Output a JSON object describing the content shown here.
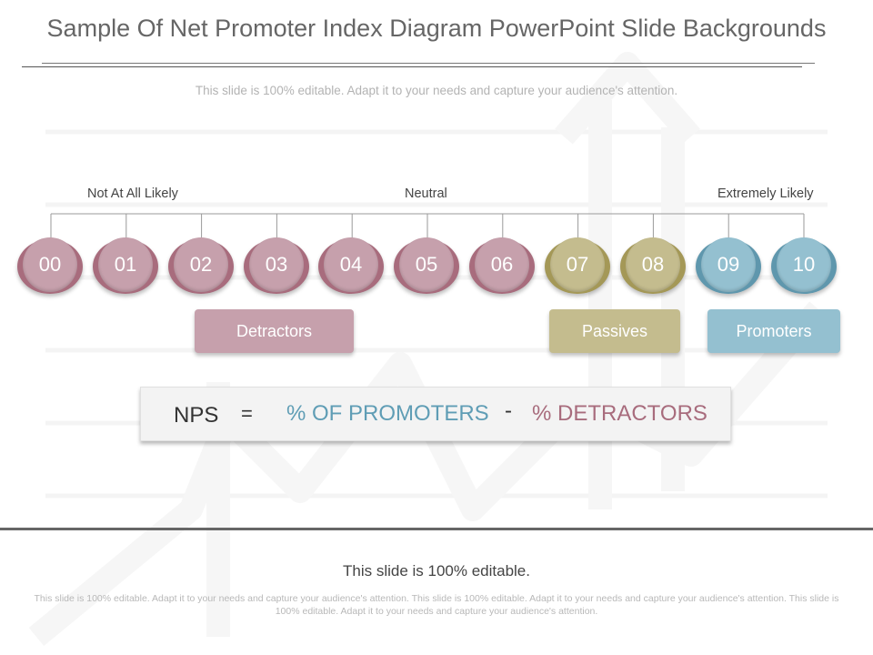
{
  "title": "Sample Of Net Promoter Index Diagram PowerPoint Slide Backgrounds",
  "subtitle": "This slide is 100% editable. Adapt it to your needs and capture your audience's attention.",
  "scale_labels": {
    "left": "Not At All Likely",
    "middle": "Neutral",
    "right": "Extremely Likely"
  },
  "scores": [
    "00",
    "01",
    "02",
    "03",
    "04",
    "05",
    "06",
    "07",
    "08",
    "09",
    "10"
  ],
  "categories": {
    "detractors": "Detractors",
    "passives": "Passives",
    "promoters": "Promoters"
  },
  "colors": {
    "detractor": "#c6a0ac",
    "passive": "#c4bc8e",
    "promoter": "#94c0d0",
    "promoter_text": "#5f9db5",
    "detractor_text": "#a86c7d"
  },
  "formula": {
    "nps": "NPS",
    "equals": "=",
    "promoters": "% OF PROMOTERS",
    "minus": "-",
    "detractors": "% DETRACTORS"
  },
  "footer": {
    "heading": "This slide is 100% editable.",
    "text": "This slide is 100% editable. Adapt it to your needs and capture your audience's attention. This slide is 100% editable. Adapt it to your needs and capture your audience's attention. This slide is 100% editable. Adapt it to your needs and capture your audience's attention."
  }
}
